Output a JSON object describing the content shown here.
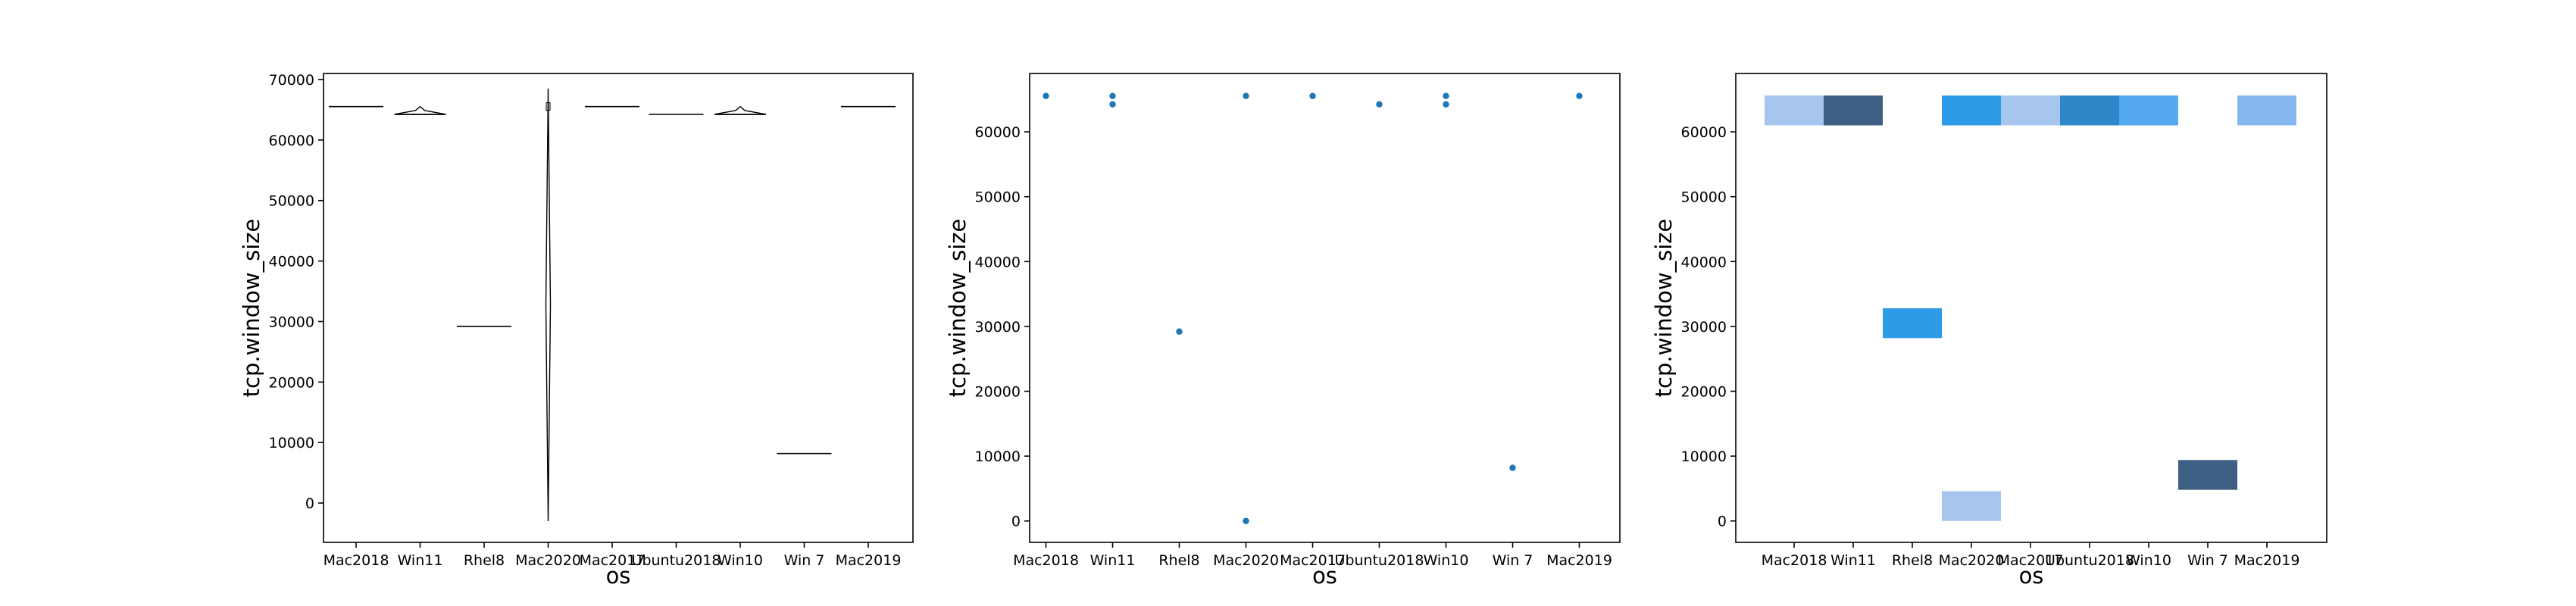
{
  "chart_data": [
    {
      "type": "violin",
      "xlabel": "os",
      "ylabel": "tcp.window_size",
      "categories": [
        "Mac2018",
        "Win11",
        "Rhel8",
        "Mac2020",
        "Mac2017",
        "Ubuntu2018",
        "Win10",
        "Win 7",
        "Mac2019"
      ],
      "ylim": [
        -6500,
        71000
      ],
      "yticks": [
        0,
        10000,
        20000,
        30000,
        40000,
        50000,
        60000,
        70000
      ],
      "series": [
        {
          "category": "Mac2018",
          "values": [
            65535
          ],
          "range": [
            65535,
            65535
          ]
        },
        {
          "category": "Win11",
          "values": [
            64240,
            65535
          ],
          "range": [
            64240,
            65535
          ]
        },
        {
          "category": "Rhel8",
          "values": [
            29200
          ],
          "range": [
            29200,
            29200
          ]
        },
        {
          "category": "Mac2020",
          "values": [
            0,
            65535
          ],
          "range": [
            -3000,
            68500
          ]
        },
        {
          "category": "Mac2017",
          "values": [
            65535
          ],
          "range": [
            65535,
            65535
          ]
        },
        {
          "category": "Ubuntu2018",
          "values": [
            64240
          ],
          "range": [
            64240,
            64240
          ]
        },
        {
          "category": "Win10",
          "values": [
            64240,
            65535
          ],
          "range": [
            64240,
            65535
          ]
        },
        {
          "category": "Win 7",
          "values": [
            8192
          ],
          "range": [
            8192,
            8192
          ]
        },
        {
          "category": "Mac2019",
          "values": [
            65535
          ],
          "range": [
            65535,
            65535
          ]
        }
      ],
      "color": "#000000"
    },
    {
      "type": "scatter",
      "xlabel": "os",
      "ylabel": "tcp.window_size",
      "categories": [
        "Mac2018",
        "Win11",
        "Rhel8",
        "Mac2020",
        "Mac2017",
        "Ubuntu2018",
        "Win10",
        "Win 7",
        "Mac2019"
      ],
      "ylim": [
        -3300,
        69000
      ],
      "yticks": [
        0,
        10000,
        20000,
        30000,
        40000,
        50000,
        60000
      ],
      "points": [
        {
          "category": "Mac2018",
          "y": 65535
        },
        {
          "category": "Win11",
          "y": 65535
        },
        {
          "category": "Win11",
          "y": 64240
        },
        {
          "category": "Rhel8",
          "y": 29200
        },
        {
          "category": "Mac2020",
          "y": 65535
        },
        {
          "category": "Mac2020",
          "y": 0
        },
        {
          "category": "Mac2017",
          "y": 65535
        },
        {
          "category": "Ubuntu2018",
          "y": 64240
        },
        {
          "category": "Win10",
          "y": 65535
        },
        {
          "category": "Win10",
          "y": 64240
        },
        {
          "category": "Win 7",
          "y": 8192
        },
        {
          "category": "Mac2019",
          "y": 65535
        }
      ],
      "color": "#1f77b4"
    },
    {
      "type": "heatmap",
      "xlabel": "os",
      "ylabel": "tcp.window_size",
      "categories": [
        "Mac2018",
        "Win11",
        "Rhel8",
        "Mac2020",
        "Mac2017",
        "Ubuntu2018",
        "Win10",
        "Win 7",
        "Mac2019"
      ],
      "ylim": [
        -3300,
        69000
      ],
      "yticks": [
        0,
        10000,
        20000,
        30000,
        40000,
        50000,
        60000
      ],
      "cells": [
        {
          "category": "Mac2018",
          "y0": 61000,
          "y1": 65600,
          "color": "#a7c6ee"
        },
        {
          "category": "Win11",
          "y0": 61000,
          "y1": 65600,
          "color": "#3e5f84"
        },
        {
          "category": "Rhel8",
          "y0": 28200,
          "y1": 32800,
          "color": "#2e9be6"
        },
        {
          "category": "Mac2020",
          "y0": 61000,
          "y1": 65600,
          "color": "#2e9be6"
        },
        {
          "category": "Mac2020",
          "y0": 0,
          "y1": 4600,
          "color": "#a7c6ee"
        },
        {
          "category": "Mac2017",
          "y0": 61000,
          "y1": 65600,
          "color": "#a7c6ee"
        },
        {
          "category": "Ubuntu2018",
          "y0": 61000,
          "y1": 65600,
          "color": "#2f86c9"
        },
        {
          "category": "Win10",
          "y0": 61000,
          "y1": 65600,
          "color": "#54a9ee"
        },
        {
          "category": "Win 7",
          "y0": 4800,
          "y1": 9400,
          "color": "#3e5f84"
        },
        {
          "category": "Mac2019",
          "y0": 61000,
          "y1": 65600,
          "color": "#86b8ef"
        }
      ]
    }
  ]
}
